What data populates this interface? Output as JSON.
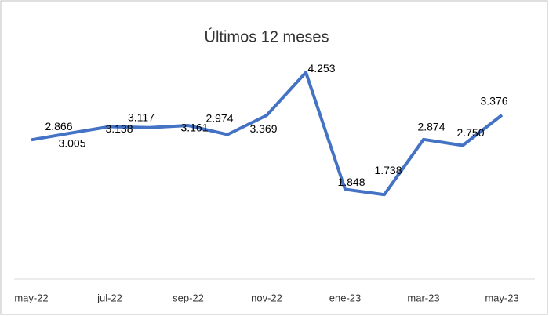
{
  "chart_data": {
    "type": "line",
    "title": "Últimos 12 meses",
    "categories": [
      "may-22",
      null,
      "jul-22",
      null,
      "sep-22",
      null,
      "nov-22",
      null,
      "ene-23",
      null,
      "mar-23",
      null,
      "may-23"
    ],
    "values": [
      2.866,
      3.005,
      3.138,
      3.117,
      3.161,
      2.974,
      3.369,
      4.253,
      1.848,
      1.738,
      2.874,
      2.75,
      3.376
    ],
    "value_labels": [
      "2.866",
      "3.005",
      "3.138",
      "3.117",
      "3.161",
      "2.974",
      "3.369",
      "4.253",
      "1.848",
      "1.738",
      "2.874",
      "2.750",
      "3.376"
    ],
    "color": "#4472c4",
    "ylim": [
      0,
      5
    ]
  }
}
